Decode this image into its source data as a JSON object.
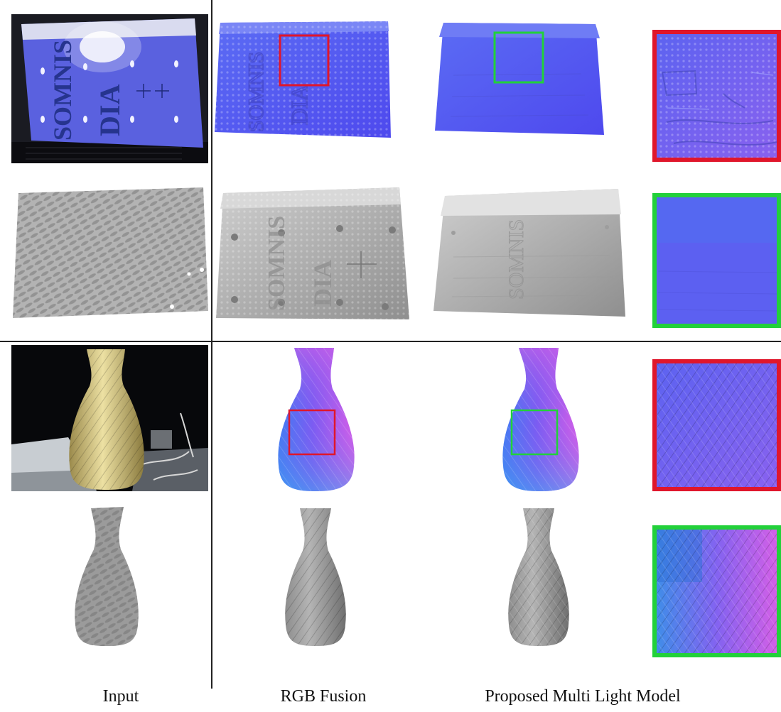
{
  "columns": [
    {
      "label": "Input"
    },
    {
      "label": "RGB Fusion"
    },
    {
      "label": "Proposed Multi Light Model"
    }
  ],
  "book_cover": {
    "title_line1": "SOMNIS",
    "title_line2": "DIA"
  },
  "colors": {
    "normal_blue": "#5d5ff2",
    "highlight_red": "#e0162b",
    "highlight_green": "#22d13a",
    "mesh_gray": "#a9a9a9",
    "vase_wood": "#d8c98a",
    "divider": "#222222"
  },
  "panels": [
    {
      "row": 1,
      "column": "Input",
      "content": "photo-book-cover"
    },
    {
      "row": 1,
      "column": "RGB Fusion",
      "content": "normal-map-book",
      "highlight": "red"
    },
    {
      "row": 1,
      "column": "Proposed Multi Light Model",
      "content": "normal-map-book",
      "highlight": "green"
    },
    {
      "row": 1,
      "column": "zoom",
      "content": "zoom-normal-crop",
      "highlight": "red"
    },
    {
      "row": 2,
      "column": "Input",
      "content": "mesh-book"
    },
    {
      "row": 2,
      "column": "RGB Fusion",
      "content": "mesh-book"
    },
    {
      "row": 2,
      "column": "Proposed Multi Light Model",
      "content": "mesh-book"
    },
    {
      "row": 2,
      "column": "zoom",
      "content": "zoom-normal-crop",
      "highlight": "green"
    },
    {
      "row": 3,
      "column": "Input",
      "content": "photo-vase"
    },
    {
      "row": 3,
      "column": "RGB Fusion",
      "content": "normal-map-vase",
      "highlight": "red"
    },
    {
      "row": 3,
      "column": "Proposed Multi Light Model",
      "content": "normal-map-vase",
      "highlight": "green"
    },
    {
      "row": 3,
      "column": "zoom",
      "content": "zoom-normal-crop",
      "highlight": "red"
    },
    {
      "row": 4,
      "column": "Input",
      "content": "mesh-vase"
    },
    {
      "row": 4,
      "column": "RGB Fusion",
      "content": "mesh-vase"
    },
    {
      "row": 4,
      "column": "Proposed Multi Light Model",
      "content": "mesh-vase"
    },
    {
      "row": 4,
      "column": "zoom",
      "content": "zoom-normal-crop",
      "highlight": "green"
    }
  ]
}
